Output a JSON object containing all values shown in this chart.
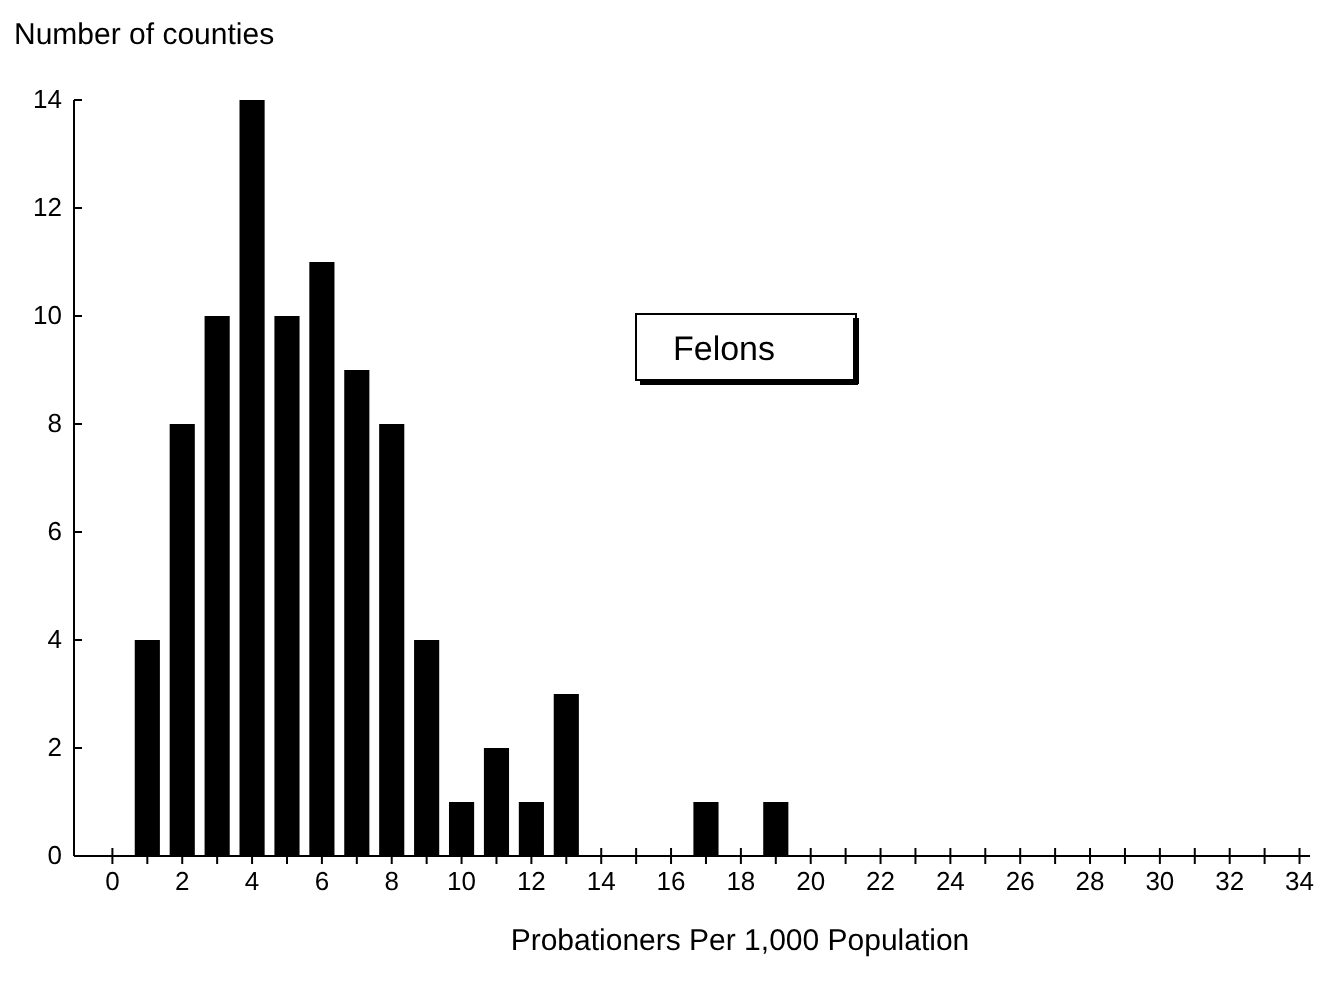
{
  "chart_data": {
    "type": "bar",
    "title": "Felons",
    "xlabel": "Probationers  Per 1,000 Population",
    "ylabel": "Number of counties",
    "x": [
      1,
      2,
      3,
      4,
      5,
      6,
      7,
      8,
      9,
      10,
      11,
      12,
      13,
      17,
      19
    ],
    "values": [
      4,
      8,
      10,
      14,
      10,
      11,
      9,
      8,
      4,
      1,
      2,
      1,
      3,
      1,
      1
    ],
    "color": "#000000",
    "xlim": [
      -1.1,
      34.3
    ],
    "xticks": [
      0,
      {
        "value": 1,
        "label": null
      },
      2,
      {
        "value": 3,
        "label": null
      },
      4,
      {
        "value": 5,
        "label": null
      },
      6,
      {
        "value": 7,
        "label": null
      },
      8,
      {
        "value": 9,
        "label": null
      },
      10,
      {
        "value": 11,
        "label": null
      },
      12,
      {
        "value": 13,
        "label": null
      },
      14,
      {
        "value": 15,
        "label": null
      },
      16,
      {
        "value": 17,
        "label": null
      },
      18,
      {
        "value": 19,
        "label": null
      },
      20,
      {
        "value": 21,
        "label": null
      },
      22,
      {
        "value": 23,
        "label": null
      },
      24,
      {
        "value": 25,
        "label": null
      },
      26,
      {
        "value": 27,
        "label": null
      },
      28,
      {
        "value": 29,
        "label": null
      },
      30,
      {
        "value": 31,
        "label": null
      },
      32,
      {
        "value": 33,
        "label": null
      },
      34
    ],
    "ylim": [
      0,
      14
    ],
    "yticks": [
      0,
      2,
      4,
      6,
      8,
      10,
      12,
      14
    ],
    "grid": false
  }
}
